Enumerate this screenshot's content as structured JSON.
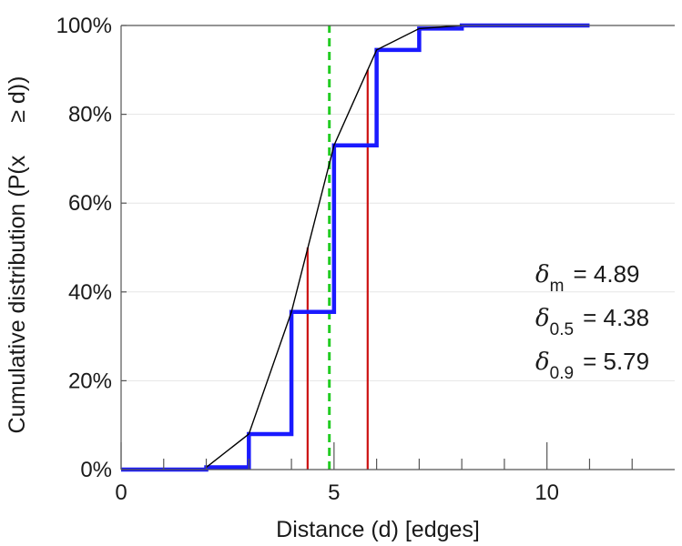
{
  "chart_data": {
    "type": "line",
    "xlabel": "Distance (d) [edges]",
    "ylabel_parts": [
      "Cumulative distribution (P(x",
      "≥ d))"
    ],
    "xlim": [
      0,
      13
    ],
    "ylim": [
      0,
      1
    ],
    "x_ticks": [
      0,
      5,
      10
    ],
    "x_minor_ticks": [
      1,
      2,
      3,
      4,
      6,
      7,
      8,
      9,
      11,
      12
    ],
    "y_ticks": [
      {
        "value": 0,
        "label": "0%"
      },
      {
        "value": 0.2,
        "label": "20%"
      },
      {
        "value": 0.4,
        "label": "40%"
      },
      {
        "value": 0.6,
        "label": "60%"
      },
      {
        "value": 0.8,
        "label": "80%"
      },
      {
        "value": 1.0,
        "label": "100%"
      }
    ],
    "grid": {
      "horizontal": true,
      "vertical": false
    },
    "series": [
      {
        "style": "step",
        "color": "#1a1aff",
        "x": [
          0,
          1,
          2,
          3,
          4,
          5,
          6,
          7,
          8,
          9,
          10,
          11
        ],
        "y": [
          0.0,
          0.0,
          0.005,
          0.08,
          0.355,
          0.73,
          0.945,
          0.993,
          1.0,
          1.0,
          1.0,
          1.0
        ]
      },
      {
        "style": "line",
        "color": "#000000",
        "x": [
          2,
          3,
          4,
          5,
          6,
          7,
          8
        ],
        "y": [
          0.005,
          0.08,
          0.355,
          0.73,
          0.945,
          0.993,
          1.0
        ]
      }
    ],
    "vlines": [
      {
        "x": 4.89,
        "y_to": 1.0,
        "color": "#22cc22",
        "dashed": true
      },
      {
        "x": 4.38,
        "y_to": 0.5,
        "color": "#cc1111",
        "dashed": false
      },
      {
        "x": 5.79,
        "y_to": 0.9,
        "color": "#cc1111",
        "dashed": false
      }
    ],
    "annotations": [
      {
        "symbol": "δ",
        "sub": "m",
        "text": "= 4.89"
      },
      {
        "symbol": "δ",
        "sub": "0.5",
        "text": "= 4.38"
      },
      {
        "symbol": "δ",
        "sub": "0.9",
        "text": "= 5.79"
      }
    ]
  }
}
